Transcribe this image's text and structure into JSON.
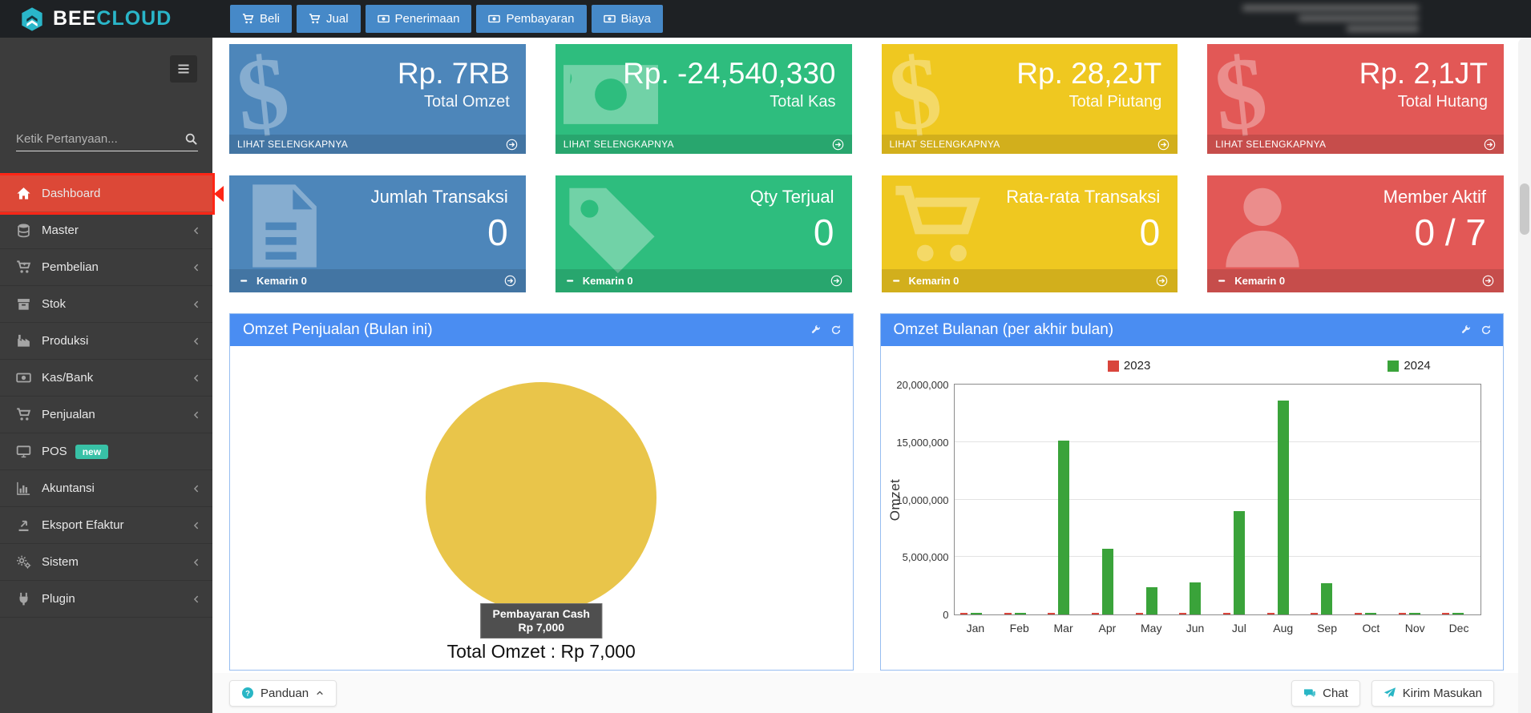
{
  "topbar": {
    "brand_bold": "BEE",
    "brand_accent": "CLOUD",
    "nav": [
      {
        "label": "Beli",
        "icon": "cart-icon"
      },
      {
        "label": "Jual",
        "icon": "cart-icon"
      },
      {
        "label": "Penerimaan",
        "icon": "money-icon"
      },
      {
        "label": "Pembayaran",
        "icon": "money-icon"
      },
      {
        "label": "Biaya",
        "icon": "money-icon"
      }
    ]
  },
  "sidebar": {
    "search_placeholder": "Ketik Pertanyaan...",
    "items": [
      {
        "label": "Dashboard",
        "icon": "home-icon",
        "active": true
      },
      {
        "label": "Master",
        "icon": "database-icon",
        "chevron": true
      },
      {
        "label": "Pembelian",
        "icon": "cart-plus-icon",
        "chevron": true
      },
      {
        "label": "Stok",
        "icon": "box-icon",
        "chevron": true
      },
      {
        "label": "Produksi",
        "icon": "factory-icon",
        "chevron": true
      },
      {
        "label": "Kas/Bank",
        "icon": "money-icon",
        "chevron": true
      },
      {
        "label": "Penjualan",
        "icon": "cart-icon",
        "chevron": true
      },
      {
        "label": "POS",
        "icon": "monitor-icon",
        "badge": "new"
      },
      {
        "label": "Akuntansi",
        "icon": "chart-bar-icon",
        "chevron": true
      },
      {
        "label": "Eksport Efaktur",
        "icon": "export-icon",
        "chevron": true
      },
      {
        "label": "Sistem",
        "icon": "gears-icon",
        "chevron": true
      },
      {
        "label": "Plugin",
        "icon": "plug-icon",
        "chevron": true
      }
    ]
  },
  "cards_common": {
    "see_more": "LIHAT SELENGKAPNYA",
    "yesterday": "Kemarin 0"
  },
  "cards_row1": [
    {
      "value": "Rp. 7RB",
      "label": "Total Omzet",
      "color": "#4d86ba",
      "icon": "dollar-icon"
    },
    {
      "value": "Rp. -24,540,330",
      "label": "Total Kas",
      "color": "#2ebd7e",
      "icon": "banknote-icon"
    },
    {
      "value": "Rp. 28,2JT",
      "label": "Total Piutang",
      "color": "#efc820",
      "icon": "dollar-icon"
    },
    {
      "value": "Rp. 2,1JT",
      "label": "Total Hutang",
      "color": "#e25856",
      "icon": "dollar-icon"
    }
  ],
  "cards_row2": [
    {
      "label": "Jumlah Transaksi",
      "value": "0",
      "color": "#4d86ba",
      "icon": "file-icon"
    },
    {
      "label": "Qty Terjual",
      "value": "0",
      "color": "#2ebd7e",
      "icon": "tag-icon"
    },
    {
      "label": "Rata-rata Transaksi",
      "value": "0",
      "color": "#efc820",
      "icon": "cart-icon"
    },
    {
      "label": "Member Aktif",
      "value": "0 / 7",
      "color": "#e25856",
      "icon": "person-icon"
    }
  ],
  "chart_data": [
    {
      "type": "pie",
      "title": "Omzet Penjualan (Bulan ini)",
      "slices": [
        {
          "label": "Pembayaran Cash",
          "value": 7000,
          "color": "#e9c54a"
        }
      ],
      "tooltip": [
        "Pembayaran Cash",
        "Rp 7,000"
      ],
      "caption": "Total Omzet : Rp 7,000",
      "legend_position": "none"
    },
    {
      "type": "bar",
      "title": "Omzet Bulanan (per akhir bulan)",
      "categories": [
        "Jan",
        "Feb",
        "Mar",
        "Apr",
        "May",
        "Jun",
        "Jul",
        "Aug",
        "Sep",
        "Oct",
        "Nov",
        "Dec"
      ],
      "series": [
        {
          "name": "2023",
          "color": "#d9453c",
          "values": [
            100000,
            100000,
            100000,
            100000,
            100000,
            100000,
            100000,
            100000,
            100000,
            100000,
            100000,
            100000
          ]
        },
        {
          "name": "2024",
          "color": "#3aa33a",
          "values": [
            100000,
            80000,
            15100000,
            5700000,
            2400000,
            2800000,
            9000000,
            18600000,
            2700000,
            100000,
            80000,
            50000
          ]
        }
      ],
      "xlabel": "",
      "ylabel": "Omzet",
      "ylim": [
        0,
        20000000
      ],
      "yticks": [
        "0",
        "5,000,000",
        "10,000,000",
        "15,000,000",
        "20,000,000"
      ],
      "grid": true,
      "legend_position": "top"
    }
  ],
  "footer": {
    "panduan": "Panduan",
    "chat": "Chat",
    "kirim_masukan": "Kirim Masukan"
  },
  "colors": {
    "topbar_bg": "#1e2124",
    "accent_teal": "#2ab6c9",
    "nav_blue": "#4689c8",
    "sidebar_bg": "#3c3c3c",
    "active_red": "#dc4837",
    "annotation_red": "#ff2616",
    "badge_teal": "#38c1a6",
    "panel_blue": "#4a8df2"
  }
}
